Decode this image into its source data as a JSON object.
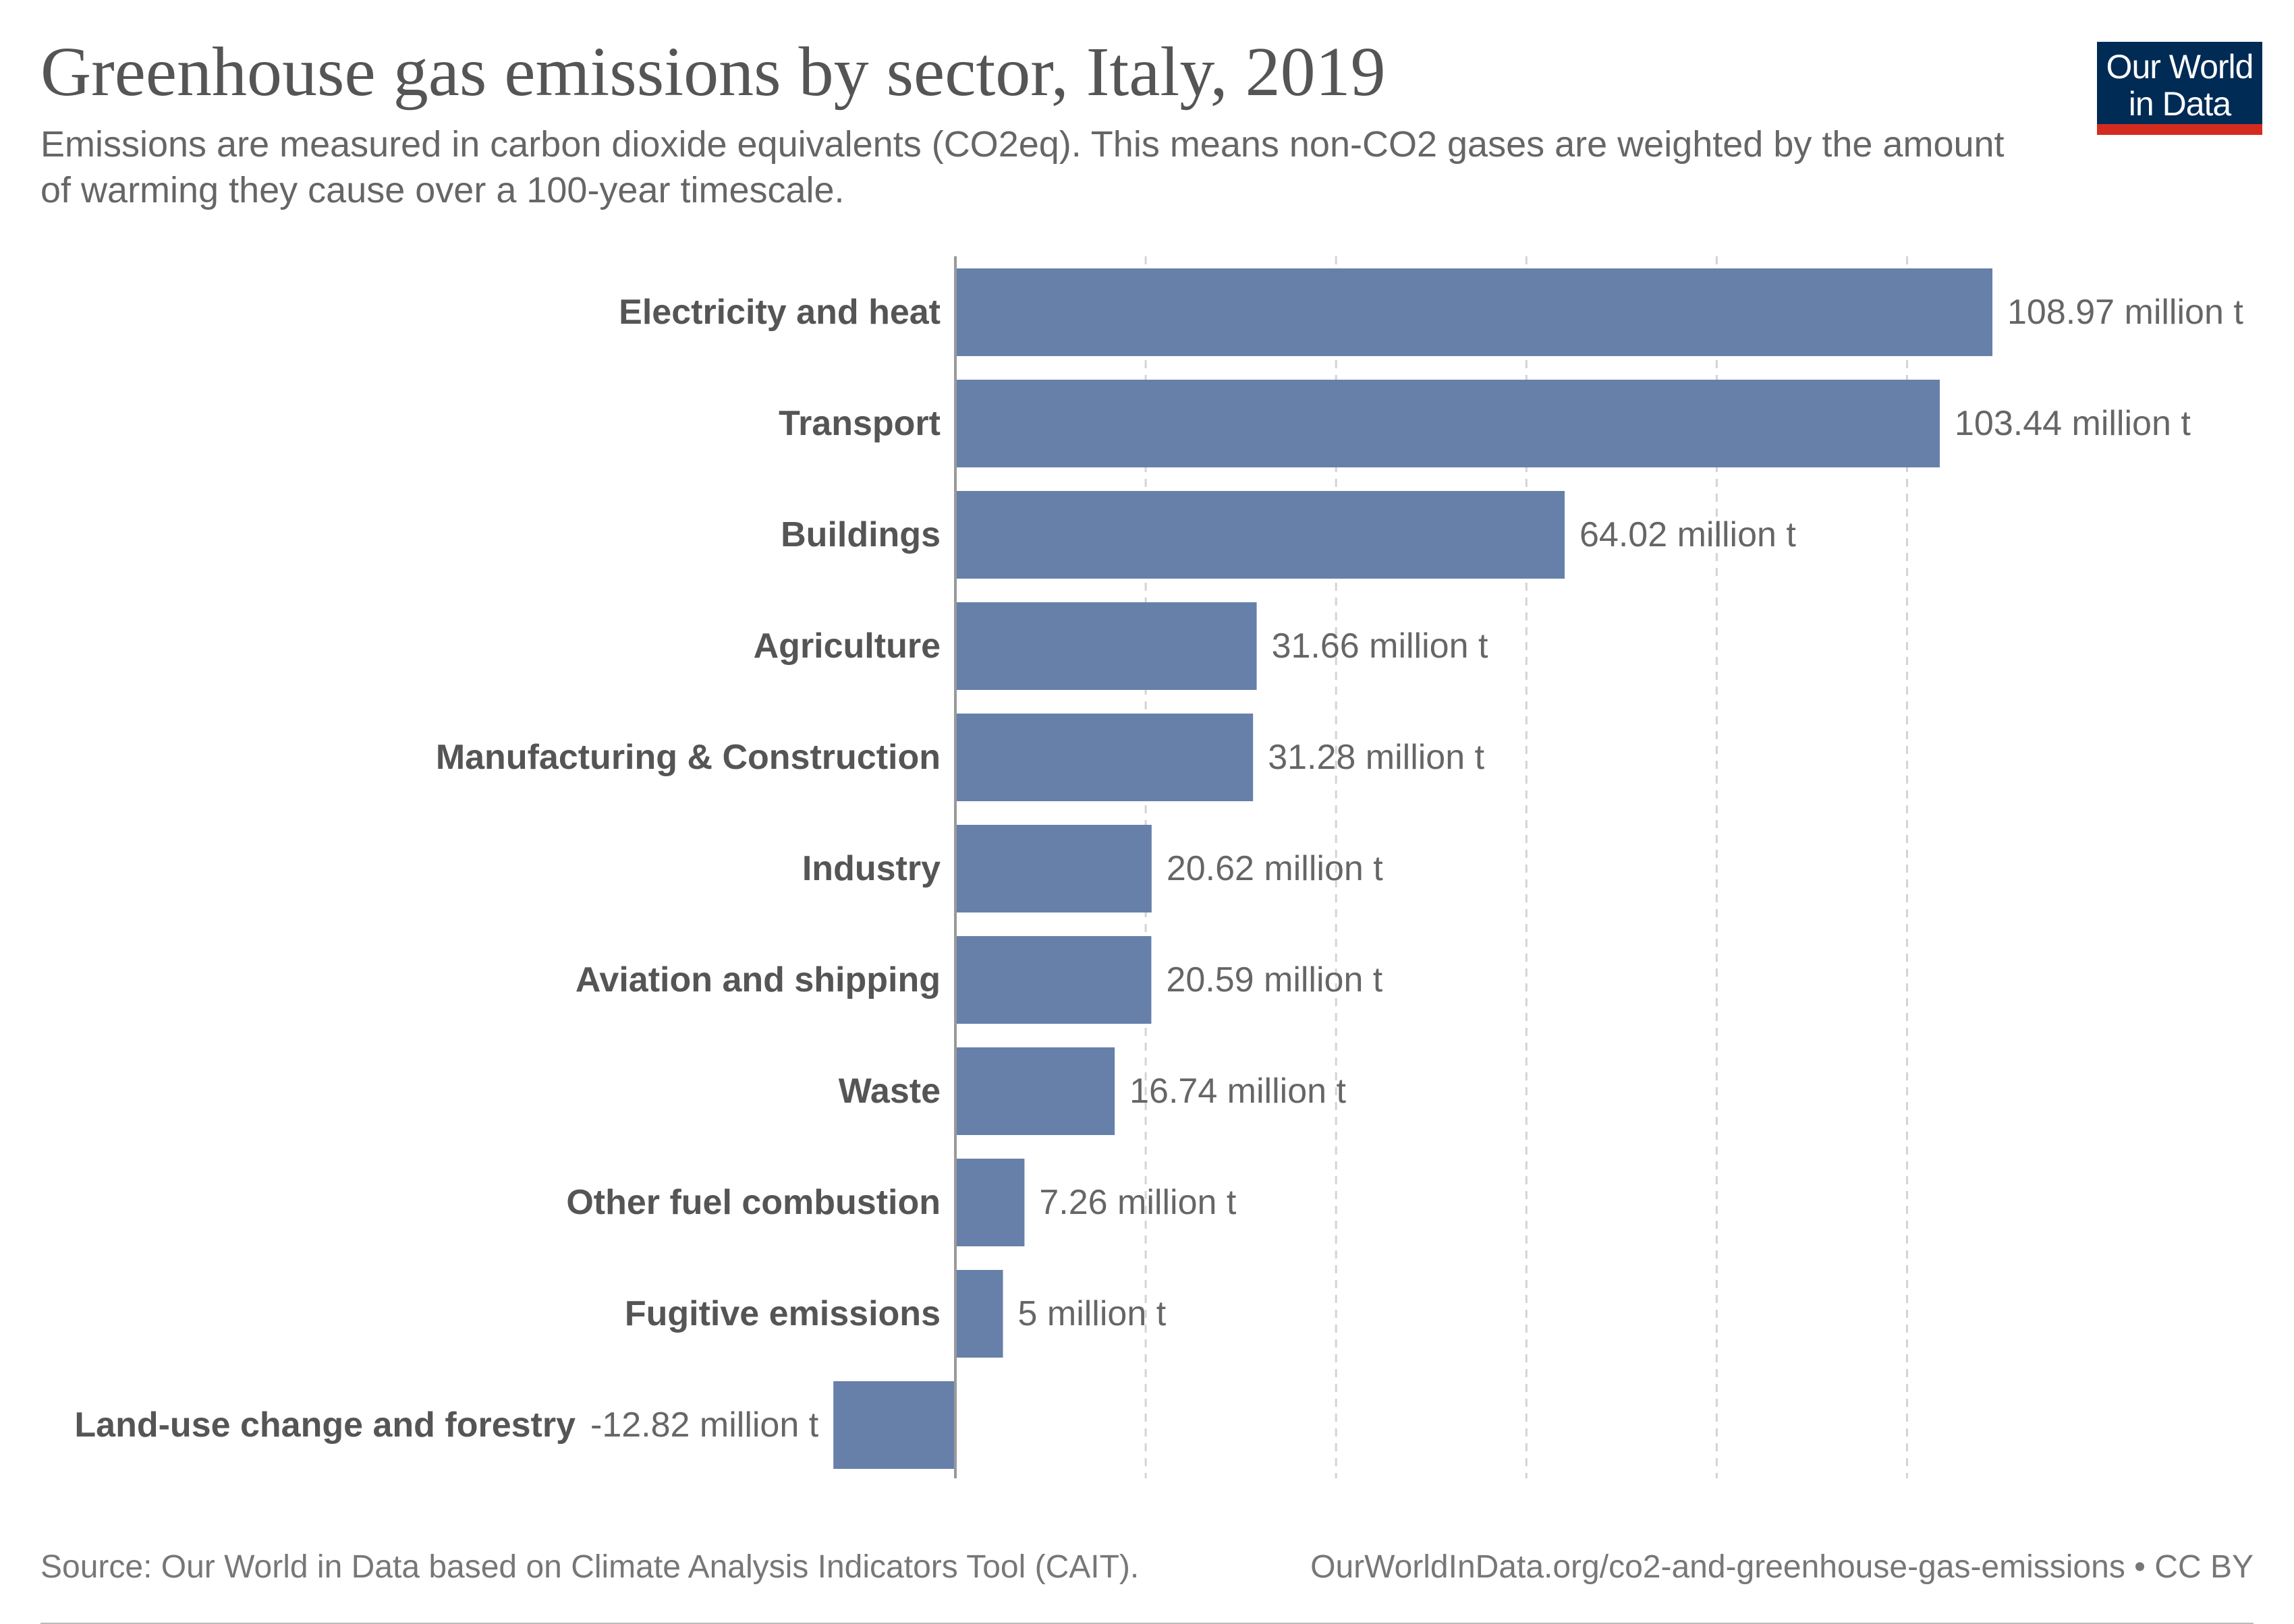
{
  "header": {
    "title": "Greenhouse gas emissions by sector, Italy, 2019",
    "subtitle": "Emissions are measured in carbon dioxide equivalents (CO2eq). This means non-CO2 gases are weighted by the amount of warming they cause over a 100-year timescale."
  },
  "logo": {
    "line1": "Our World",
    "line2": "in Data",
    "background": "#002b55",
    "accent": "#d42b21"
  },
  "footer": {
    "source": "Source: Our World in Data based on Climate Analysis Indicators Tool (CAIT).",
    "link": "OurWorldInData.org/co2-and-greenhouse-gas-emissions • CC BY"
  },
  "chart_data": {
    "type": "bar",
    "orientation": "horizontal",
    "title": "Greenhouse gas emissions by sector, Italy, 2019",
    "xlabel": "",
    "ylabel": "",
    "unit": "million t",
    "xlim": [
      -12.82,
      120
    ],
    "gridlines": [
      20,
      40,
      60,
      80,
      100
    ],
    "grid": true,
    "bar_color": "#6780aa",
    "categories": [
      "Electricity and heat",
      "Transport",
      "Buildings",
      "Agriculture",
      "Manufacturing & Construction",
      "Industry",
      "Aviation and shipping",
      "Waste",
      "Other fuel combustion",
      "Fugitive emissions",
      "Land-use change and forestry"
    ],
    "values": [
      108.97,
      103.44,
      64.02,
      31.66,
      31.28,
      20.62,
      20.59,
      16.74,
      7.26,
      5,
      -12.82
    ],
    "value_labels": [
      "108.97 million t",
      "103.44 million t",
      "64.02 million t",
      "31.66 million t",
      "31.28 million t",
      "20.62 million t",
      "20.59 million t",
      "16.74 million t",
      "7.26 million t",
      "5 million t",
      "-12.82 million t"
    ]
  }
}
